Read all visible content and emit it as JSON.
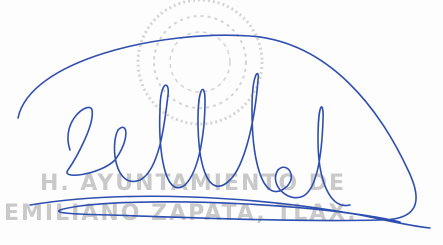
{
  "stamp": {
    "lines": [
      "H. AYUNTAMIENTO DE",
      "EMILIANO ZAPATA, TLAX."
    ]
  }
}
